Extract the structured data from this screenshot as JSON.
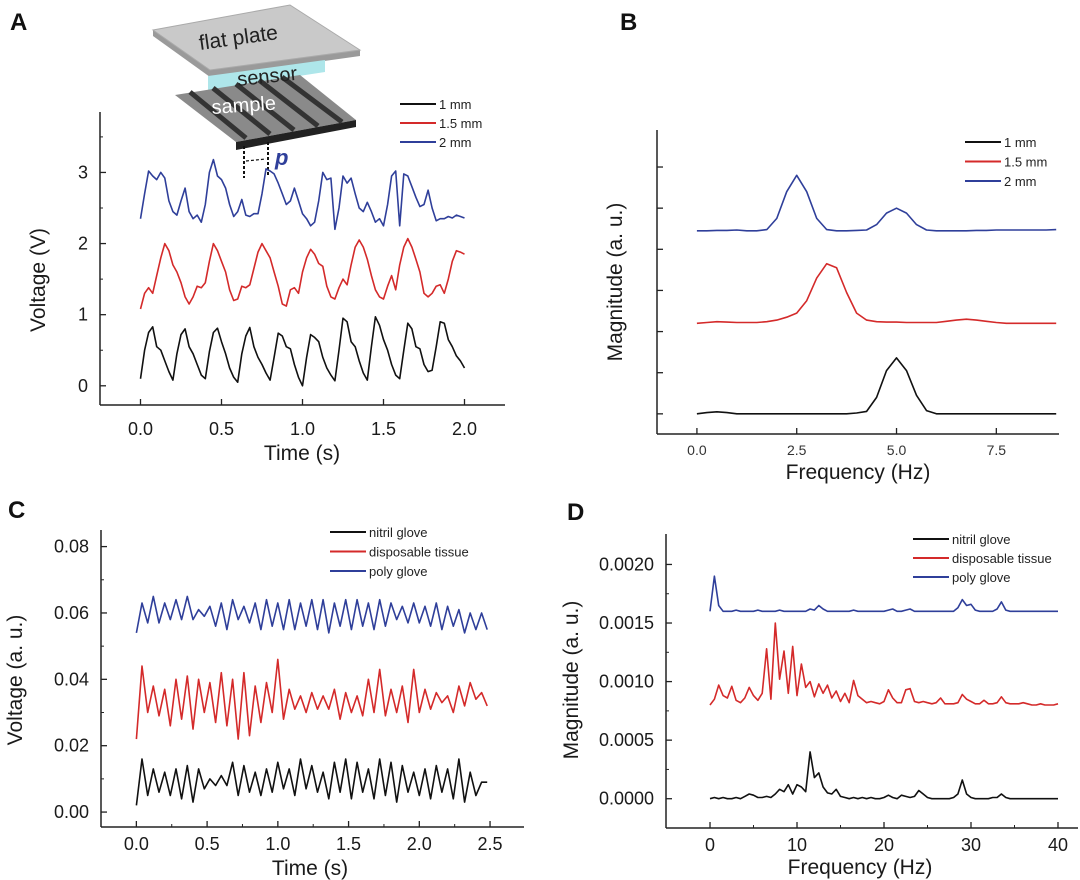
{
  "panel_letters": [
    "A",
    "B",
    "C",
    "D"
  ],
  "inset": {
    "plate_label": "flat plate",
    "sensor_label": "sensor",
    "sample_label": "sample",
    "pitch_label": "p"
  },
  "colors": {
    "black": "#111111",
    "red": "#d42a2a",
    "blue": "#2f3f9a",
    "axis": "#222222",
    "sensor": "#aee6ea",
    "plate": "#c8c8c8"
  },
  "chart_data": [
    {
      "type": "line",
      "panel": "A",
      "xlabel": "Time (s)",
      "ylabel": "Voltage (V)",
      "xlim": [
        -0.25,
        2.25
      ],
      "ylim": [
        -0.27,
        3.85
      ],
      "xticks": [
        0,
        0.5,
        1,
        1.5,
        2
      ],
      "xtick_labels": [
        "0.0",
        "0.5",
        "1.0",
        "1.5",
        "2.0"
      ],
      "yticks": [
        0,
        1,
        2,
        3
      ],
      "ytick_labels": [
        "0",
        "1",
        "2",
        "3"
      ],
      "legend_position": "top-right",
      "x_start": 0,
      "x_step": 0.025,
      "series": [
        {
          "name": "1 mm",
          "color": "#111111",
          "values": [
            0.1,
            0.5,
            0.75,
            0.83,
            0.55,
            0.5,
            0.35,
            0.2,
            0.08,
            0.45,
            0.72,
            0.8,
            0.55,
            0.45,
            0.3,
            0.15,
            0.1,
            0.48,
            0.75,
            0.81,
            0.62,
            0.45,
            0.25,
            0.12,
            0.05,
            0.45,
            0.7,
            0.82,
            0.55,
            0.4,
            0.3,
            0.18,
            0.08,
            0.4,
            0.74,
            0.7,
            0.55,
            0.52,
            0.3,
            0.12,
            0.0,
            0.4,
            0.72,
            0.68,
            0.62,
            0.4,
            0.25,
            0.15,
            0.07,
            0.5,
            0.95,
            0.9,
            0.62,
            0.55,
            0.35,
            0.18,
            0.08,
            0.55,
            0.97,
            0.85,
            0.65,
            0.5,
            0.3,
            0.15,
            0.1,
            0.5,
            0.88,
            0.8,
            0.55,
            0.52,
            0.3,
            0.2,
            0.22,
            0.55,
            0.9,
            0.88,
            0.65,
            0.55,
            0.42,
            0.35,
            0.25
          ]
        },
        {
          "name": "1.5 mm",
          "color": "#d42a2a",
          "values": [
            1.08,
            1.3,
            1.38,
            1.3,
            1.55,
            1.8,
            2.0,
            1.9,
            1.7,
            1.6,
            1.45,
            1.25,
            1.15,
            1.25,
            1.4,
            1.38,
            1.45,
            1.75,
            2.0,
            1.9,
            1.75,
            1.6,
            1.35,
            1.2,
            1.22,
            1.4,
            1.38,
            1.42,
            1.65,
            1.88,
            2.0,
            1.9,
            1.8,
            1.6,
            1.4,
            1.15,
            1.12,
            1.35,
            1.38,
            1.3,
            1.6,
            1.8,
            1.92,
            1.85,
            1.72,
            1.68,
            1.4,
            1.25,
            1.22,
            1.38,
            1.5,
            1.42,
            1.7,
            1.95,
            2.05,
            1.95,
            1.78,
            1.55,
            1.35,
            1.25,
            1.22,
            1.4,
            1.55,
            1.35,
            1.7,
            1.95,
            2.07,
            1.95,
            1.78,
            1.6,
            1.3,
            1.25,
            1.3,
            1.4,
            1.42,
            1.3,
            1.5,
            1.75,
            1.9,
            1.88,
            1.85
          ]
        },
        {
          "name": "2 mm",
          "color": "#2f3f9a",
          "values": [
            2.35,
            2.7,
            3.02,
            2.95,
            2.9,
            3.0,
            2.92,
            2.6,
            2.45,
            2.4,
            2.6,
            2.78,
            2.45,
            2.35,
            2.4,
            2.3,
            2.55,
            3.0,
            3.18,
            2.95,
            2.9,
            2.78,
            2.55,
            2.38,
            2.45,
            2.62,
            2.4,
            2.38,
            2.42,
            2.42,
            2.7,
            3.05,
            3.02,
            2.98,
            2.85,
            2.7,
            2.55,
            2.6,
            2.78,
            2.6,
            2.42,
            2.35,
            2.25,
            2.3,
            2.6,
            3.0,
            2.9,
            2.92,
            2.2,
            2.5,
            2.95,
            2.85,
            2.92,
            2.7,
            2.5,
            2.45,
            2.58,
            2.45,
            2.3,
            2.35,
            2.25,
            2.55,
            2.95,
            3.02,
            2.25,
            2.98,
            2.95,
            2.8,
            2.65,
            2.52,
            2.55,
            2.75,
            2.5,
            2.32,
            2.35,
            2.35,
            2.38,
            2.36,
            2.4,
            2.38,
            2.36
          ]
        }
      ]
    },
    {
      "type": "line",
      "panel": "B",
      "xlabel": "Frequency (Hz)",
      "ylabel": "Magnitude (a. u.)",
      "xlim": [
        -1,
        9.07
      ],
      "ylim": [
        -0.49,
        6.9
      ],
      "xticks": [
        0,
        2.5,
        5,
        7.5
      ],
      "xtick_labels": [
        "0.0",
        "2.5",
        "5.0",
        "7.5"
      ],
      "yticks": [
        0,
        1,
        2,
        3,
        4,
        5,
        6
      ],
      "ytick_labels": [],
      "legend_position": "top-right",
      "x_start": 0,
      "x_step": 0.25,
      "series": [
        {
          "name": "1 mm",
          "color": "#111111",
          "values": [
            0,
            0.03,
            0.05,
            0.03,
            0,
            0,
            0,
            0,
            0,
            0,
            0,
            0,
            0,
            0,
            0,
            0,
            0.02,
            0.06,
            0.4,
            1.05,
            1.36,
            1.05,
            0.45,
            0.08,
            0,
            0,
            0,
            0,
            0,
            0,
            0,
            0,
            0,
            0,
            0,
            0,
            0
          ]
        },
        {
          "name": "1.5 mm",
          "color": "#d42a2a",
          "values": [
            2.2,
            2.22,
            2.24,
            2.23,
            2.22,
            2.22,
            2.22,
            2.24,
            2.28,
            2.35,
            2.45,
            2.75,
            3.3,
            3.65,
            3.55,
            2.95,
            2.45,
            2.28,
            2.24,
            2.23,
            2.23,
            2.22,
            2.22,
            2.22,
            2.22,
            2.25,
            2.28,
            2.3,
            2.28,
            2.25,
            2.22,
            2.2,
            2.2,
            2.2,
            2.2,
            2.2,
            2.2
          ]
        },
        {
          "name": "2 mm",
          "color": "#2f3f9a",
          "values": [
            4.45,
            4.45,
            4.46,
            4.46,
            4.47,
            4.45,
            4.45,
            4.48,
            4.75,
            5.4,
            5.8,
            5.4,
            4.75,
            4.48,
            4.45,
            4.45,
            4.46,
            4.47,
            4.6,
            4.88,
            5.0,
            4.88,
            4.6,
            4.47,
            4.45,
            4.45,
            4.45,
            4.45,
            4.46,
            4.46,
            4.47,
            4.47,
            4.47,
            4.47,
            4.47,
            4.47,
            4.48
          ]
        }
      ]
    },
    {
      "type": "line",
      "panel": "C",
      "xlabel": "Time (s)",
      "ylabel": "Voltage (a. u.)",
      "xlim": [
        -0.25,
        2.74
      ],
      "ylim": [
        -0.0045,
        0.085
      ],
      "xticks": [
        0,
        0.5,
        1,
        1.5,
        2,
        2.5
      ],
      "xtick_labels": [
        "0.0",
        "0.5",
        "1.0",
        "1.5",
        "2.0",
        "2.5"
      ],
      "yticks": [
        0,
        0.02,
        0.04,
        0.06,
        0.08
      ],
      "ytick_labels": [
        "0.00",
        "0.02",
        "0.04",
        "0.06",
        "0.08"
      ],
      "legend_position": "top-right",
      "x_start": 0,
      "x_step": 0.04,
      "series": [
        {
          "name": "nitril glove",
          "color": "#111111",
          "values": [
            0.002,
            0.016,
            0.005,
            0.013,
            0.006,
            0.012,
            0.005,
            0.013,
            0.004,
            0.014,
            0.003,
            0.013,
            0.007,
            0.01,
            0.008,
            0.011,
            0.008,
            0.015,
            0.005,
            0.014,
            0.006,
            0.012,
            0.005,
            0.013,
            0.006,
            0.015,
            0.007,
            0.013,
            0.005,
            0.016,
            0.007,
            0.014,
            0.006,
            0.012,
            0.004,
            0.015,
            0.006,
            0.016,
            0.004,
            0.015,
            0.006,
            0.013,
            0.004,
            0.016,
            0.005,
            0.015,
            0.003,
            0.014,
            0.006,
            0.012,
            0.005,
            0.013,
            0.004,
            0.014,
            0.006,
            0.013,
            0.004,
            0.016,
            0.003,
            0.012,
            0.005,
            0.009,
            0.009
          ]
        },
        {
          "name": "disposable tissue",
          "color": "#d42a2a",
          "values": [
            0.022,
            0.044,
            0.03,
            0.038,
            0.029,
            0.037,
            0.026,
            0.04,
            0.028,
            0.041,
            0.025,
            0.04,
            0.03,
            0.039,
            0.027,
            0.042,
            0.026,
            0.04,
            0.022,
            0.042,
            0.023,
            0.038,
            0.027,
            0.039,
            0.03,
            0.046,
            0.028,
            0.037,
            0.031,
            0.035,
            0.03,
            0.036,
            0.031,
            0.035,
            0.031,
            0.037,
            0.028,
            0.036,
            0.03,
            0.035,
            0.029,
            0.04,
            0.03,
            0.043,
            0.029,
            0.037,
            0.03,
            0.038,
            0.027,
            0.043,
            0.03,
            0.037,
            0.031,
            0.036,
            0.033,
            0.035,
            0.03,
            0.038,
            0.032,
            0.039,
            0.034,
            0.036,
            0.032
          ]
        },
        {
          "name": "poly glove",
          "color": "#2f3f9a",
          "values": [
            0.054,
            0.063,
            0.057,
            0.065,
            0.057,
            0.063,
            0.058,
            0.064,
            0.058,
            0.065,
            0.058,
            0.061,
            0.059,
            0.062,
            0.056,
            0.063,
            0.055,
            0.064,
            0.058,
            0.062,
            0.057,
            0.063,
            0.055,
            0.064,
            0.056,
            0.063,
            0.055,
            0.064,
            0.055,
            0.063,
            0.056,
            0.064,
            0.055,
            0.064,
            0.054,
            0.063,
            0.056,
            0.064,
            0.055,
            0.064,
            0.056,
            0.063,
            0.055,
            0.064,
            0.056,
            0.063,
            0.058,
            0.062,
            0.057,
            0.063,
            0.057,
            0.062,
            0.056,
            0.063,
            0.055,
            0.062,
            0.056,
            0.061,
            0.054,
            0.06,
            0.055,
            0.06,
            0.055
          ]
        }
      ]
    },
    {
      "type": "line",
      "panel": "D",
      "xlabel": "Frequency (Hz)",
      "ylabel": "Magnitude (a. u.)",
      "xlim": [
        -5.06,
        42.3
      ],
      "ylim": [
        -0.00025,
        0.00226
      ],
      "xticks": [
        0,
        10,
        20,
        30,
        40
      ],
      "xtick_labels": [
        "0",
        "10",
        "20",
        "30",
        "40"
      ],
      "yticks": [
        0,
        0.0005,
        0.001,
        0.0015,
        0.002
      ],
      "ytick_labels": [
        "0.0000",
        "0.0005",
        "0.0010",
        "0.0015",
        "0.0020"
      ],
      "legend_position": "top-right",
      "x_start": 0,
      "x_step": 0.5,
      "series": [
        {
          "name": "nitril glove",
          "color": "#111111",
          "values": [
            0,
            1e-05,
            0,
            1e-05,
            0,
            0,
            1e-05,
            0,
            2e-05,
            4e-05,
            3e-05,
            1e-05,
            1e-05,
            2e-05,
            1e-05,
            4e-05,
            8e-05,
            6e-05,
            0.00012,
            4e-05,
            0.00012,
            0.0001,
            6e-05,
            0.0004,
            0.00018,
            0.00022,
            0.0001,
            5e-05,
            4e-05,
            8e-05,
            2e-05,
            1e-05,
            0,
            1e-05,
            0,
            1e-05,
            0,
            1e-05,
            0,
            0,
            1e-05,
            3e-05,
            1e-05,
            0,
            3e-05,
            2e-05,
            1e-05,
            2e-05,
            7e-05,
            4e-05,
            1e-05,
            0,
            0,
            0,
            0,
            0,
            1e-05,
            4e-05,
            0.00016,
            4e-05,
            1e-05,
            0,
            0,
            0,
            0,
            1e-05,
            1e-05,
            4e-05,
            1e-05,
            0,
            0,
            0,
            0,
            0,
            0,
            0,
            0,
            0,
            0,
            0,
            0
          ]
        },
        {
          "name": "disposable tissue",
          "color": "#d42a2a",
          "values": [
            0.0008,
            0.00085,
            0.00097,
            0.00088,
            0.00086,
            0.00096,
            0.00084,
            0.00082,
            0.00086,
            0.00095,
            0.00088,
            0.00084,
            0.0009,
            0.00128,
            0.00085,
            0.0015,
            0.00102,
            0.00126,
            0.0009,
            0.0013,
            0.00088,
            0.00115,
            0.00095,
            0.001,
            0.00087,
            0.00098,
            0.0009,
            0.00097,
            0.00086,
            0.00092,
            0.00083,
            0.0009,
            0.00082,
            0.00101,
            0.00088,
            0.00085,
            0.00082,
            0.00083,
            0.00082,
            0.00081,
            0.00083,
            0.00093,
            0.00086,
            0.00082,
            0.00082,
            0.00093,
            0.00094,
            0.00083,
            0.00082,
            0.00083,
            0.00082,
            0.00081,
            0.00082,
            0.00086,
            0.00081,
            0.00081,
            0.00081,
            0.00082,
            0.00089,
            0.00085,
            0.00083,
            0.00081,
            0.00081,
            0.00084,
            0.00081,
            0.00081,
            0.00082,
            0.00087,
            0.00082,
            0.00081,
            0.00081,
            0.00081,
            0.00082,
            0.00081,
            0.0008,
            0.0008,
            0.00081,
            0.0008,
            0.0008,
            0.0008,
            0.00081
          ]
        },
        {
          "name": "poly glove",
          "color": "#2f3f9a",
          "values": [
            0.0016,
            0.0019,
            0.00165,
            0.0016,
            0.0016,
            0.0016,
            0.00161,
            0.0016,
            0.0016,
            0.0016,
            0.0016,
            0.00161,
            0.0016,
            0.0016,
            0.0016,
            0.0016,
            0.00161,
            0.0016,
            0.0016,
            0.0016,
            0.0016,
            0.0016,
            0.0016,
            0.00162,
            0.00161,
            0.00165,
            0.00162,
            0.0016,
            0.0016,
            0.0016,
            0.0016,
            0.0016,
            0.0016,
            0.00161,
            0.0016,
            0.0016,
            0.0016,
            0.0016,
            0.0016,
            0.0016,
            0.0016,
            0.00161,
            0.00162,
            0.0016,
            0.0016,
            0.00161,
            0.00162,
            0.0016,
            0.0016,
            0.0016,
            0.0016,
            0.0016,
            0.0016,
            0.0016,
            0.0016,
            0.0016,
            0.0016,
            0.00163,
            0.0017,
            0.00165,
            0.00166,
            0.00161,
            0.0016,
            0.0016,
            0.0016,
            0.0016,
            0.00162,
            0.00168,
            0.00161,
            0.0016,
            0.0016,
            0.0016,
            0.0016,
            0.0016,
            0.0016,
            0.0016,
            0.0016,
            0.0016,
            0.0016,
            0.0016,
            0.0016
          ]
        }
      ]
    }
  ]
}
